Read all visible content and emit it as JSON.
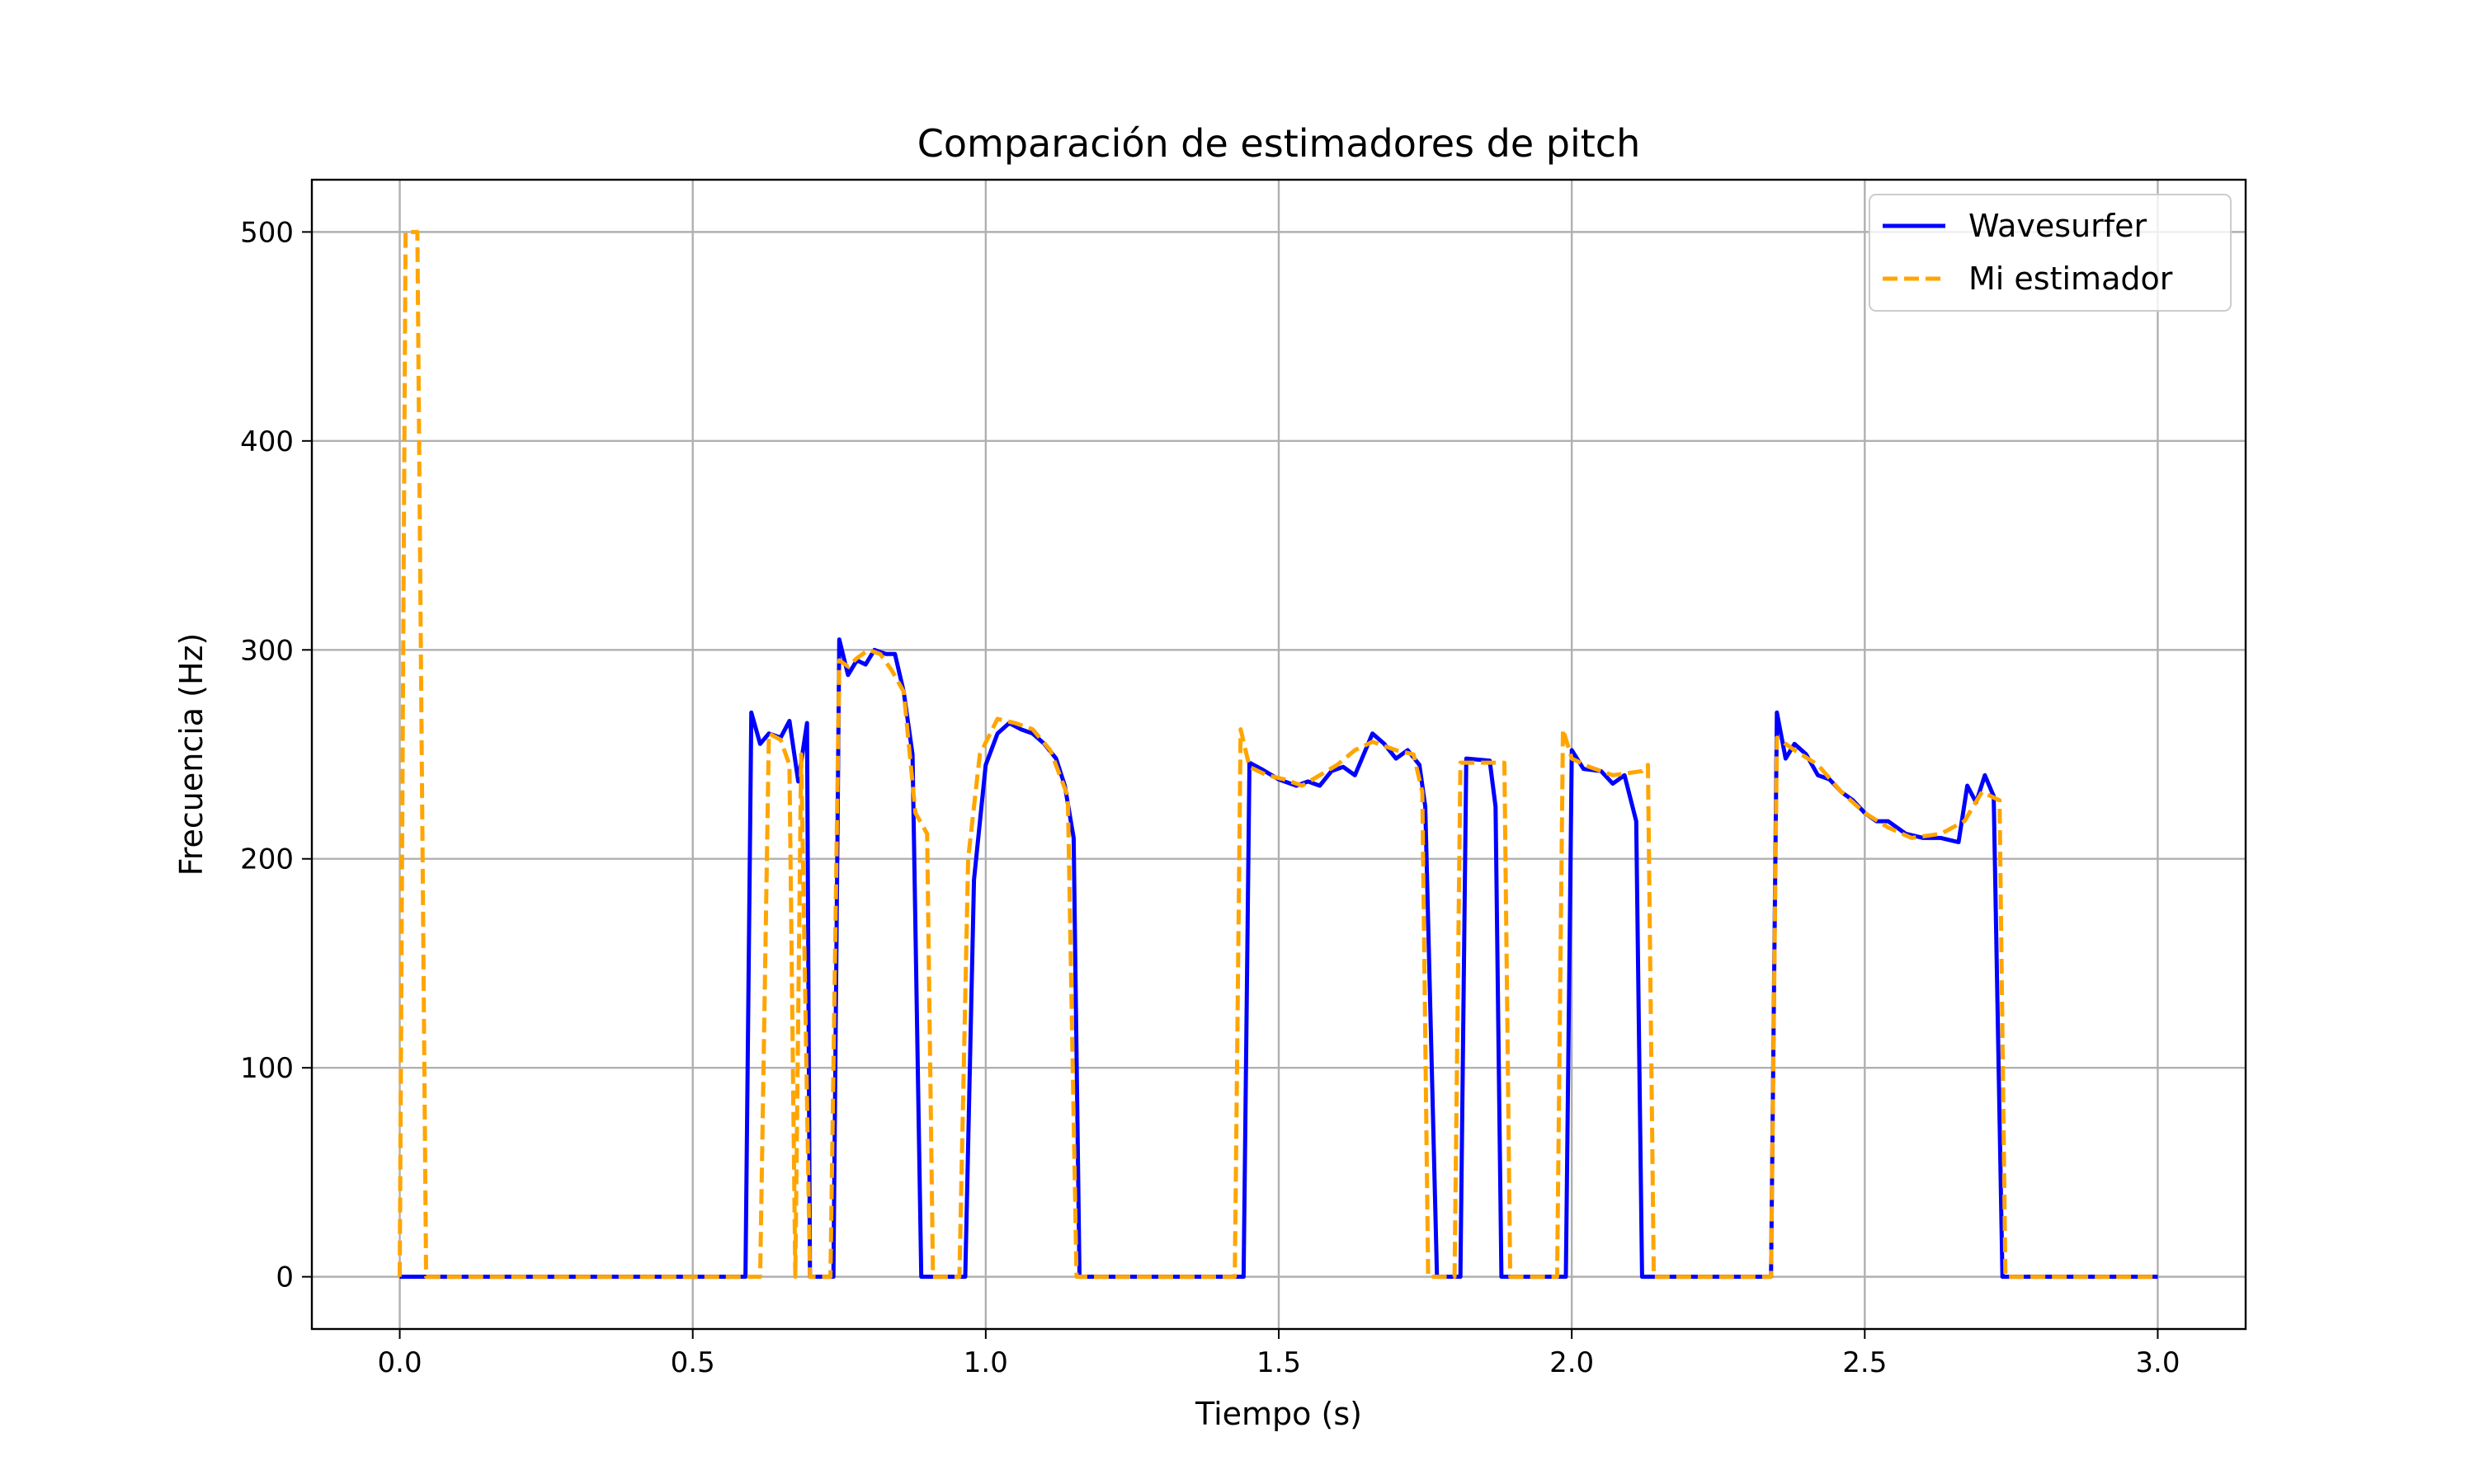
{
  "chart_data": {
    "type": "line",
    "title": "Comparación de estimadores de pitch",
    "xlabel": "Tiempo (s)",
    "ylabel": "Frecuencia (Hz)",
    "xlim": [
      -0.15,
      3.15
    ],
    "ylim": [
      -25,
      525
    ],
    "xticks": [
      0.0,
      0.5,
      1.0,
      1.5,
      2.0,
      2.5,
      3.0
    ],
    "xtick_labels": [
      "0.0",
      "0.5",
      "1.0",
      "1.5",
      "2.0",
      "2.5",
      "3.0"
    ],
    "yticks": [
      0,
      100,
      200,
      300,
      400,
      500
    ],
    "ytick_labels": [
      "0",
      "100",
      "200",
      "300",
      "400",
      "500"
    ],
    "grid": true,
    "legend_position": "top-right",
    "series": [
      {
        "name": "Wavesurfer",
        "color": "#0000ff",
        "style": "solid",
        "points": [
          [
            0.0,
            0
          ],
          [
            0.59,
            0
          ],
          [
            0.6,
            270
          ],
          [
            0.615,
            255
          ],
          [
            0.63,
            260
          ],
          [
            0.65,
            258
          ],
          [
            0.665,
            266
          ],
          [
            0.68,
            237
          ],
          [
            0.695,
            265
          ],
          [
            0.7,
            0
          ],
          [
            0.74,
            0
          ],
          [
            0.75,
            305
          ],
          [
            0.765,
            288
          ],
          [
            0.78,
            295
          ],
          [
            0.795,
            293
          ],
          [
            0.81,
            300
          ],
          [
            0.83,
            298
          ],
          [
            0.845,
            298
          ],
          [
            0.86,
            280
          ],
          [
            0.875,
            250
          ],
          [
            0.89,
            0
          ],
          [
            0.965,
            0
          ],
          [
            0.98,
            190
          ],
          [
            1.0,
            245
          ],
          [
            1.02,
            260
          ],
          [
            1.04,
            265
          ],
          [
            1.06,
            262
          ],
          [
            1.08,
            260
          ],
          [
            1.1,
            255
          ],
          [
            1.12,
            248
          ],
          [
            1.135,
            235
          ],
          [
            1.15,
            210
          ],
          [
            1.16,
            0
          ],
          [
            1.44,
            0
          ],
          [
            1.45,
            246
          ],
          [
            1.47,
            243
          ],
          [
            1.5,
            238
          ],
          [
            1.53,
            235
          ],
          [
            1.55,
            237
          ],
          [
            1.57,
            235
          ],
          [
            1.59,
            242
          ],
          [
            1.61,
            244
          ],
          [
            1.63,
            240
          ],
          [
            1.66,
            260
          ],
          [
            1.68,
            255
          ],
          [
            1.7,
            248
          ],
          [
            1.72,
            252
          ],
          [
            1.74,
            245
          ],
          [
            1.75,
            225
          ],
          [
            1.77,
            0
          ],
          [
            1.81,
            0
          ],
          [
            1.82,
            248
          ],
          [
            1.86,
            247
          ],
          [
            1.87,
            225
          ],
          [
            1.88,
            0
          ],
          [
            1.99,
            0
          ],
          [
            2.0,
            252
          ],
          [
            2.02,
            243
          ],
          [
            2.05,
            242
          ],
          [
            2.07,
            236
          ],
          [
            2.09,
            240
          ],
          [
            2.11,
            218
          ],
          [
            2.12,
            0
          ],
          [
            2.34,
            0
          ],
          [
            2.35,
            270
          ],
          [
            2.365,
            248
          ],
          [
            2.38,
            255
          ],
          [
            2.4,
            250
          ],
          [
            2.42,
            240
          ],
          [
            2.44,
            238
          ],
          [
            2.46,
            232
          ],
          [
            2.48,
            228
          ],
          [
            2.5,
            222
          ],
          [
            2.52,
            218
          ],
          [
            2.54,
            218
          ],
          [
            2.57,
            212
          ],
          [
            2.6,
            210
          ],
          [
            2.63,
            210
          ],
          [
            2.66,
            208
          ],
          [
            2.675,
            235
          ],
          [
            2.69,
            227
          ],
          [
            2.705,
            240
          ],
          [
            2.72,
            230
          ],
          [
            2.735,
            0
          ],
          [
            3.0,
            0
          ]
        ]
      },
      {
        "name": "Mi estimador",
        "color": "#ffa500",
        "style": "dashed",
        "points": [
          [
            0.0,
            0
          ],
          [
            0.01,
            500
          ],
          [
            0.03,
            500
          ],
          [
            0.045,
            0
          ],
          [
            0.615,
            0
          ],
          [
            0.63,
            260
          ],
          [
            0.65,
            257
          ],
          [
            0.665,
            245
          ],
          [
            0.675,
            0
          ],
          [
            0.685,
            250
          ],
          [
            0.7,
            0
          ],
          [
            0.735,
            0
          ],
          [
            0.75,
            295
          ],
          [
            0.765,
            292
          ],
          [
            0.78,
            296
          ],
          [
            0.8,
            300
          ],
          [
            0.82,
            298
          ],
          [
            0.84,
            290
          ],
          [
            0.86,
            280
          ],
          [
            0.88,
            222
          ],
          [
            0.9,
            212
          ],
          [
            0.91,
            0
          ],
          [
            0.955,
            0
          ],
          [
            0.97,
            200
          ],
          [
            0.99,
            250
          ],
          [
            1.02,
            267
          ],
          [
            1.05,
            265
          ],
          [
            1.08,
            262
          ],
          [
            1.11,
            252
          ],
          [
            1.14,
            230
          ],
          [
            1.155,
            0
          ],
          [
            1.425,
            0
          ],
          [
            1.435,
            262
          ],
          [
            1.45,
            244
          ],
          [
            1.48,
            240
          ],
          [
            1.51,
            238
          ],
          [
            1.54,
            235
          ],
          [
            1.57,
            240
          ],
          [
            1.6,
            245
          ],
          [
            1.63,
            252
          ],
          [
            1.66,
            256
          ],
          [
            1.7,
            252
          ],
          [
            1.73,
            250
          ],
          [
            1.745,
            232
          ],
          [
            1.755,
            0
          ],
          [
            1.8,
            0
          ],
          [
            1.81,
            246
          ],
          [
            1.86,
            246
          ],
          [
            1.885,
            246
          ],
          [
            1.895,
            0
          ],
          [
            1.975,
            0
          ],
          [
            1.985,
            262
          ],
          [
            2.0,
            248
          ],
          [
            2.03,
            244
          ],
          [
            2.07,
            240
          ],
          [
            2.12,
            242
          ],
          [
            2.13,
            245
          ],
          [
            2.14,
            0
          ],
          [
            2.34,
            0
          ],
          [
            2.35,
            258
          ],
          [
            2.38,
            252
          ],
          [
            2.42,
            245
          ],
          [
            2.46,
            232
          ],
          [
            2.5,
            222
          ],
          [
            2.54,
            215
          ],
          [
            2.58,
            210
          ],
          [
            2.63,
            212
          ],
          [
            2.67,
            218
          ],
          [
            2.7,
            232
          ],
          [
            2.73,
            228
          ],
          [
            2.74,
            0
          ],
          [
            3.0,
            0
          ]
        ]
      }
    ]
  }
}
